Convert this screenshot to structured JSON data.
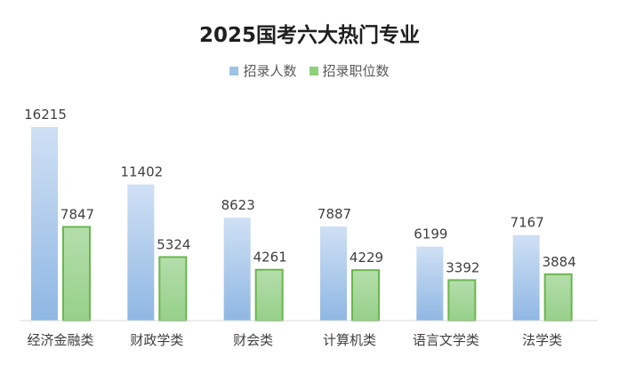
{
  "chart_data": {
    "type": "bar",
    "title": "2025国考六大热门专业",
    "categories": [
      "经济金融类",
      "财政学类",
      "财会类",
      "计算机类",
      "语言文学类",
      "法学类"
    ],
    "series": [
      {
        "name": "招录人数",
        "values": [
          16215,
          11402,
          8623,
          7887,
          6199,
          7167
        ],
        "color": "#9dc3e6"
      },
      {
        "name": "招录职位数",
        "values": [
          7847,
          5324,
          4261,
          4229,
          3392,
          3884
        ],
        "color": "#8fd07a"
      }
    ],
    "xlabel": "",
    "ylabel": "",
    "ylim": [
      0,
      17000
    ],
    "grid": false,
    "legend_position": "top"
  }
}
